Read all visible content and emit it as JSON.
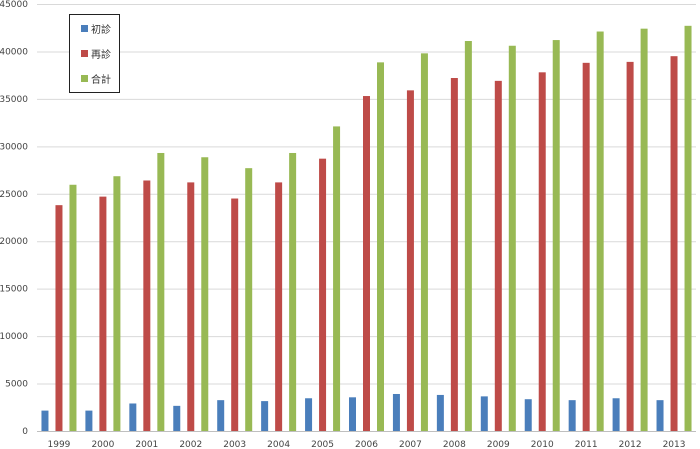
{
  "chart_data": {
    "type": "bar",
    "categories": [
      "1999",
      "2000",
      "2001",
      "2002",
      "2003",
      "2004",
      "2005",
      "2006",
      "2007",
      "2008",
      "2009",
      "2010",
      "2011",
      "2012",
      "2013"
    ],
    "series": [
      {
        "name": "初診",
        "color": "#4a7ebb",
        "values": [
          2150,
          2150,
          2900,
          2650,
          3250,
          3150,
          3450,
          3550,
          3900,
          3800,
          3650,
          3350,
          3250,
          3450,
          3250
        ]
      },
      {
        "name": "再診",
        "color": "#be4b48",
        "values": [
          23800,
          24700,
          26400,
          26200,
          24500,
          26200,
          28700,
          35300,
          35900,
          37200,
          36900,
          37800,
          38800,
          38900,
          39500
        ]
      },
      {
        "name": "合計",
        "color": "#98b954",
        "values": [
          25950,
          26850,
          29300,
          28850,
          27700,
          29300,
          32100,
          38850,
          39800,
          41100,
          40600,
          41200,
          42100,
          42400,
          42700
        ]
      }
    ],
    "ylim": [
      0,
      45000
    ],
    "yticks": [
      "0",
      "5000",
      "10000",
      "15000",
      "20000",
      "25000",
      "30000",
      "35000",
      "40000",
      "45000"
    ],
    "grid": true,
    "legend_position": "top-left"
  }
}
